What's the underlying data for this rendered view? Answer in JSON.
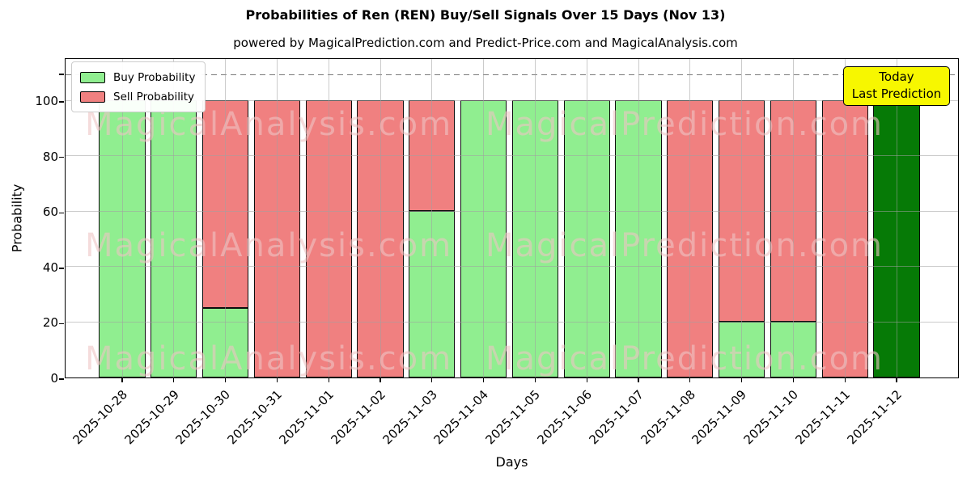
{
  "title": "Probabilities of Ren (REN) Buy/Sell Signals Over 15 Days (Nov 13)",
  "subtitle": "powered by MagicalPrediction.com and Predict-Price.com and MagicalAnalysis.com",
  "legend": {
    "items": [
      {
        "label": "Buy Probability",
        "color": "#90EE90"
      },
      {
        "label": "Sell Probability",
        "color": "#F08080"
      }
    ]
  },
  "annotation": {
    "line1": "Today",
    "line2": "Last Prediction",
    "bg_color": "#F7F700"
  },
  "watermarks": {
    "left": "MagicalAnalysis.com",
    "right": "MagicalPrediction.com"
  },
  "axes": {
    "xlabel": "Days",
    "ylabel": "Probability",
    "yticks": [
      0,
      20,
      40,
      60,
      80,
      100
    ]
  },
  "colors": {
    "buy": "#90EE90",
    "sell": "#F08080",
    "today": "#067A06",
    "bar_edge": "#0d0d0d",
    "grid": "rgba(160,160,160,0.55)",
    "dashed": "#7a7a7a",
    "annotation_bg": "#F7F700"
  },
  "chart_data": {
    "type": "bar",
    "stacked": true,
    "title": "Probabilities of Ren (REN) Buy/Sell Signals Over 15 Days (Nov 13)",
    "xlabel": "Days",
    "ylabel": "Probability",
    "categories": [
      "2025-10-28",
      "2025-10-29",
      "2025-10-30",
      "2025-10-31",
      "2025-11-01",
      "2025-11-02",
      "2025-11-03",
      "2025-11-04",
      "2025-11-05",
      "2025-11-06",
      "2025-11-07",
      "2025-11-08",
      "2025-11-09",
      "2025-11-10",
      "2025-11-11",
      "2025-11-12"
    ],
    "series": [
      {
        "name": "Buy Probability",
        "color": "#90EE90",
        "values": [
          100,
          100,
          25,
          0,
          0,
          0,
          60,
          100,
          100,
          100,
          100,
          0,
          20,
          20,
          0,
          100
        ]
      },
      {
        "name": "Sell Probability",
        "color": "#F08080",
        "values": [
          0,
          0,
          75,
          100,
          100,
          100,
          40,
          0,
          0,
          0,
          0,
          100,
          80,
          80,
          100,
          0
        ]
      }
    ],
    "today_index": 15,
    "today_color": "#067A06",
    "ylim": [
      0,
      115.5
    ],
    "dashed_line_y": 110,
    "grid": true,
    "legend_position": "upper left"
  }
}
